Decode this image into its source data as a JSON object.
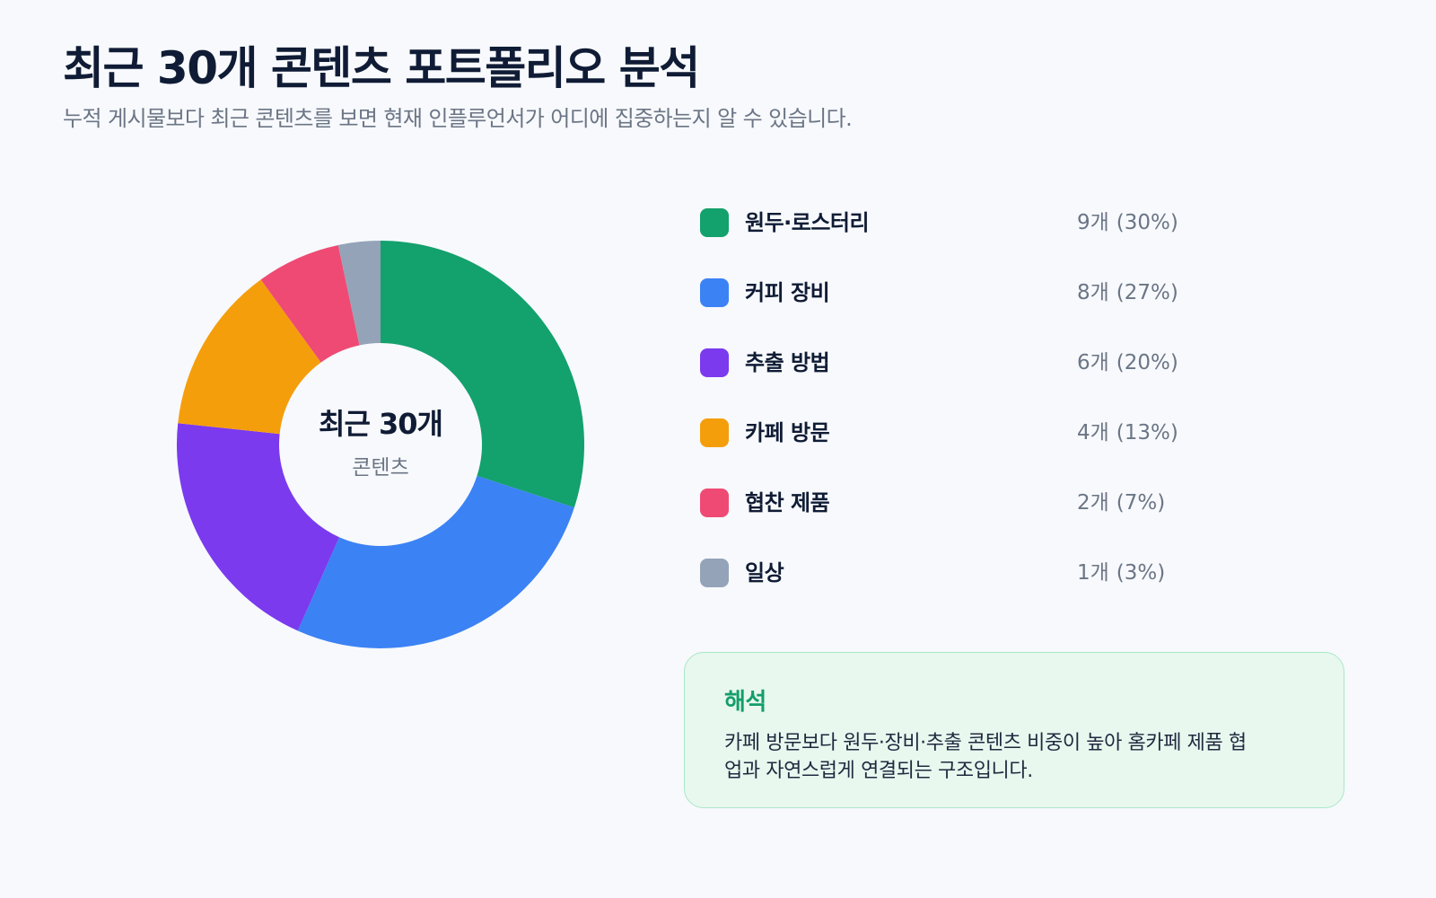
{
  "header": {
    "title": "최근 30개 콘텐츠 포트폴리오 분석",
    "subtitle": "누적 게시물보다 최근 콘텐츠를 보면 현재 인플루언서가 어디에 집중하는지 알 수 있습니다."
  },
  "chart_data": {
    "type": "pie",
    "variant": "donut",
    "title": "",
    "center_label": {
      "title": "최근 30개",
      "subtitle": "콘텐츠"
    },
    "legend_placement": "right",
    "slices": [
      {
        "label": "원두·로스터리",
        "value": 9,
        "count_text": "9개",
        "percent_text": "(30%)",
        "color": "#13a16d"
      },
      {
        "label": "커피 장비",
        "value": 8,
        "count_text": "8개",
        "percent_text": "(27%)",
        "color": "#3b82f4"
      },
      {
        "label": "추출 방법",
        "value": 6,
        "count_text": "6개",
        "percent_text": "(20%)",
        "color": "#7b3aee"
      },
      {
        "label": "카페 방문",
        "value": 4,
        "count_text": "4개",
        "percent_text": "(13%)",
        "color": "#f59e0b"
      },
      {
        "label": "협찬 제품",
        "value": 2,
        "count_text": "2개",
        "percent_text": "(7%)",
        "color": "#ef4a73"
      },
      {
        "label": "일상",
        "value": 1,
        "count_text": "1개",
        "percent_text": "(3%)",
        "color": "#94a3b8"
      }
    ]
  },
  "insight": {
    "title": "해석",
    "body": "카페 방문보다 원두·장비·추출 콘텐츠 비중이 높아 홈카페 제품 협업과 자연스럽게 연결되는 구조입니다."
  }
}
